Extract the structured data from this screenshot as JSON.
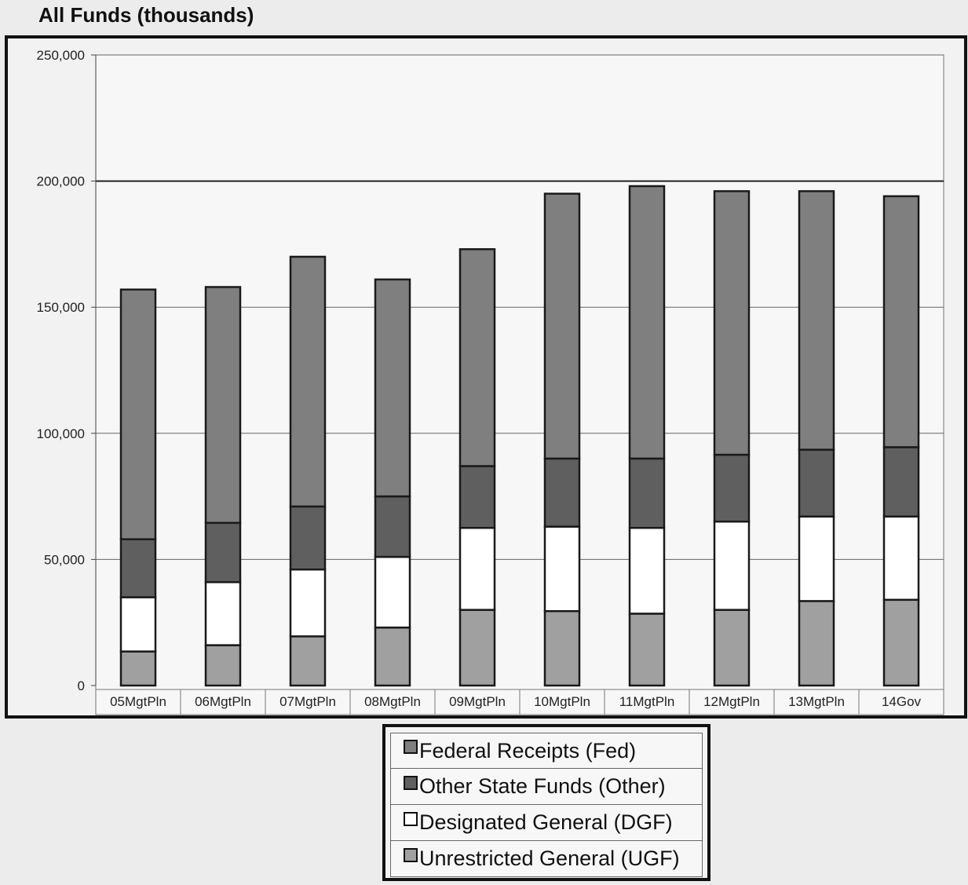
{
  "chart_data": {
    "type": "bar",
    "stacked": true,
    "title": "All Funds (thousands)",
    "categories": [
      "05MgtPln",
      "06MgtPln",
      "07MgtPln",
      "08MgtPln",
      "09MgtPln",
      "10MgtPln",
      "11MgtPln",
      "12MgtPln",
      "13MgtPln",
      "14Gov"
    ],
    "category_labels": [
      "05MgtPln",
      "06MgtPln",
      "07MgtPln",
      "08MgtPln",
      "09MgtPln",
      "10MgtPln",
      "11MgtPln",
      "12MgtPln",
      "13MgtPln",
      "14Gov"
    ],
    "ylim": [
      0,
      250000
    ],
    "yticks": [
      0,
      50000,
      100000,
      150000,
      200000,
      250000
    ],
    "ytick_labels": [
      "0",
      "50,000",
      "100,000",
      "150,000",
      "200,000",
      "250,000"
    ],
    "grid": true,
    "legend_position": "bottom",
    "series": [
      {
        "name": "Unrestricted General (UGF)",
        "color": "#a0a0a0",
        "values": [
          13500,
          16000,
          19500,
          23000,
          30000,
          29500,
          28500,
          30000,
          33500,
          34000
        ]
      },
      {
        "name": "Designated General (DGF)",
        "color": "#ffffff",
        "values": [
          21500,
          25000,
          26500,
          28000,
          32500,
          33500,
          34000,
          35000,
          33500,
          33000
        ]
      },
      {
        "name": "Other State Funds (Other)",
        "color": "#5f5f5f",
        "values": [
          23000,
          23500,
          25000,
          24000,
          24500,
          27000,
          27500,
          26500,
          26500,
          27500
        ]
      },
      {
        "name": "Federal Receipts (Fed)",
        "color": "#7f7f7f",
        "values": [
          99000,
          93500,
          99000,
          86000,
          86000,
          105000,
          108000,
          104500,
          102500,
          99500
        ]
      }
    ],
    "legend_order": [
      {
        "label": "Federal Receipts (Fed)",
        "color": "#7f7f7f"
      },
      {
        "label": "Other State Funds (Other)",
        "color": "#5f5f5f"
      },
      {
        "label": "Designated General (DGF)",
        "color": "#ffffff"
      },
      {
        "label": "Unrestricted General (UGF)",
        "color": "#a0a0a0"
      }
    ]
  }
}
